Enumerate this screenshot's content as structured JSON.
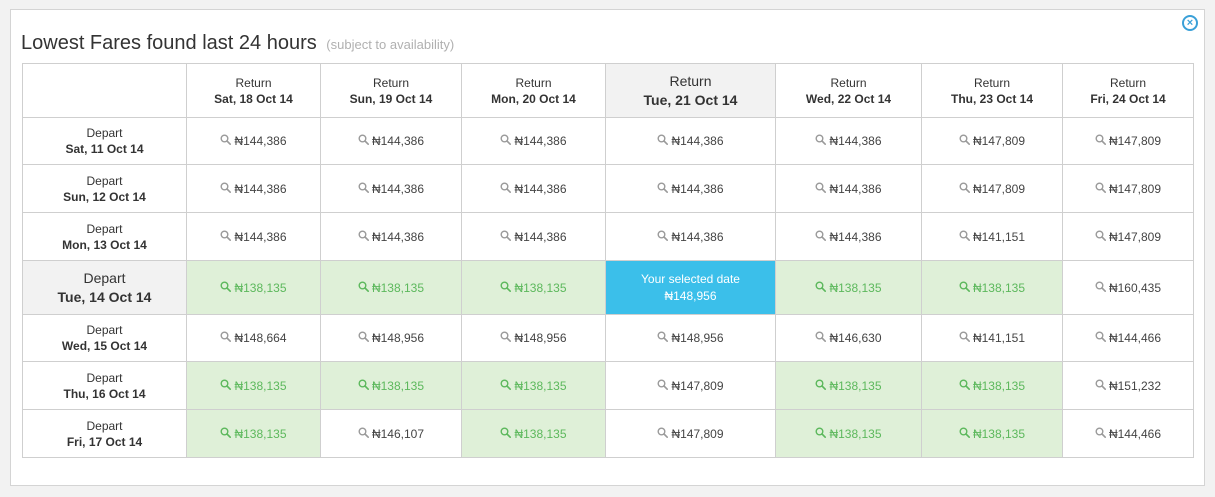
{
  "title": "Lowest Fares found last 24 hours",
  "subtitle": "(subject to availability)",
  "close_icon": "close-circle-icon",
  "return_label": "Return",
  "depart_label": "Depart",
  "return_dates": [
    "Sat, 18 Oct 14",
    "Sun, 19 Oct 14",
    "Mon, 20 Oct 14",
    "Tue, 21 Oct 14",
    "Wed, 22 Oct 14",
    "Thu, 23 Oct 14",
    "Fri, 24 Oct 14"
  ],
  "selected_label": "Your selected date",
  "colors": {
    "green_bg": "#dff0d8",
    "green_text": "#5cb85c",
    "selected_bg": "#3bbfea",
    "accent": "#3aa0d8"
  },
  "rows": [
    {
      "depart_date": "Sat, 11 Oct 14",
      "fares": [
        "₦144,386",
        "₦144,386",
        "₦144,386",
        "₦144,386",
        "₦144,386",
        "₦147,809",
        "₦147,809"
      ]
    },
    {
      "depart_date": "Sun, 12 Oct 14",
      "fares": [
        "₦144,386",
        "₦144,386",
        "₦144,386",
        "₦144,386",
        "₦144,386",
        "₦147,809",
        "₦147,809"
      ]
    },
    {
      "depart_date": "Mon, 13 Oct 14",
      "fares": [
        "₦144,386",
        "₦144,386",
        "₦144,386",
        "₦144,386",
        "₦144,386",
        "₦141,151",
        "₦147,809"
      ]
    },
    {
      "depart_date": "Tue, 14 Oct 14",
      "fares": [
        "₦138,135",
        "₦138,135",
        "₦138,135",
        "₦148,956",
        "₦138,135",
        "₦138,135",
        "₦160,435"
      ]
    },
    {
      "depart_date": "Wed, 15 Oct 14",
      "fares": [
        "₦148,664",
        "₦148,956",
        "₦148,956",
        "₦148,956",
        "₦146,630",
        "₦141,151",
        "₦144,466"
      ]
    },
    {
      "depart_date": "Thu, 16 Oct 14",
      "fares": [
        "₦138,135",
        "₦138,135",
        "₦138,135",
        "₦147,809",
        "₦138,135",
        "₦138,135",
        "₦151,232"
      ]
    },
    {
      "depart_date": "Fri, 17 Oct 14",
      "fares": [
        "₦138,135",
        "₦146,107",
        "₦138,135",
        "₦147,809",
        "₦138,135",
        "₦138,135",
        "₦144,466"
      ]
    }
  ],
  "green_cells": [
    [
      3,
      0
    ],
    [
      3,
      1
    ],
    [
      3,
      2
    ],
    [
      3,
      4
    ],
    [
      3,
      5
    ],
    [
      5,
      0
    ],
    [
      5,
      1
    ],
    [
      5,
      2
    ],
    [
      5,
      4
    ],
    [
      5,
      5
    ],
    [
      6,
      0
    ],
    [
      6,
      2
    ],
    [
      6,
      4
    ],
    [
      6,
      5
    ]
  ],
  "selected_cell": [
    3,
    3
  ],
  "selected_row": 3,
  "selected_col": 3
}
